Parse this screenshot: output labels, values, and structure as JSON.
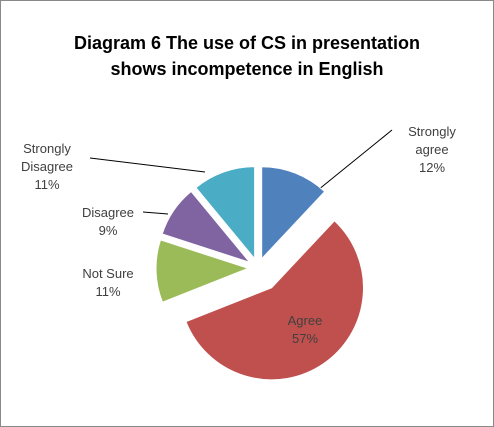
{
  "chart_data": {
    "type": "pie",
    "title": "Diagram 6 The use of CS in presentation shows incompetence in English",
    "categories": [
      "Strongly agree",
      "Agree",
      "Not Sure",
      "Disagree",
      "Strongly Disagree"
    ],
    "values": [
      12,
      57,
      11,
      9,
      11
    ],
    "value_labels": [
      "12%",
      "57%",
      "11%",
      "9%",
      "11%"
    ],
    "colors": [
      "#4f81bd",
      "#c0504d",
      "#9bbb59",
      "#8064a2",
      "#4bacc6"
    ]
  }
}
